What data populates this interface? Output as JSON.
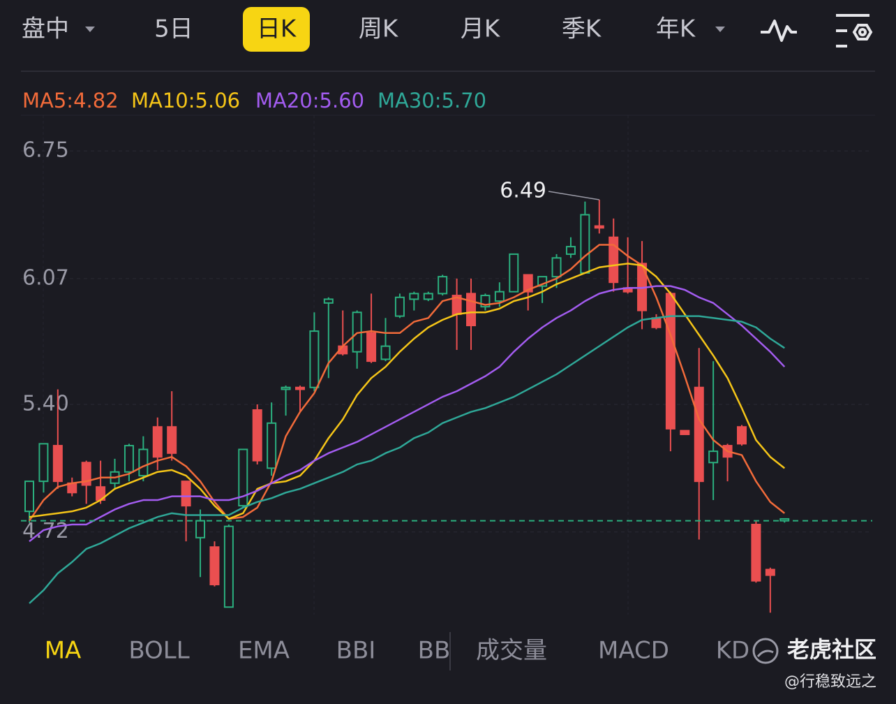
{
  "tabs": [
    "盘中",
    "5日",
    "日K",
    "周K",
    "月K",
    "季K",
    "年K"
  ],
  "selected_tab": 2,
  "indicators": [
    "MA",
    "BOLL",
    "EMA",
    "BBI",
    "BB"
  ],
  "sub_indicators": [
    "成交量",
    "MACD",
    "KD"
  ],
  "selected_indicator": 0,
  "watermark": {
    "brand": "老虎社区",
    "user": "@行稳致远之"
  },
  "chart_data": {
    "type": "candlestick",
    "ylim": [
      4.28,
      6.94
    ],
    "yticks": [
      6.75,
      6.07,
      {
        "value": 5.4,
        "label": "5.40"
      },
      4.72
    ],
    "grid": true,
    "up_color": "#2bb07f",
    "down_color": "#ea4f50",
    "price_line": 4.78,
    "price_line_color": "#2bb07f",
    "annotation": {
      "text": "6.49",
      "index": 40
    },
    "open": [
      4.83,
      4.99,
      5.18,
      4.98,
      5.09,
      4.96,
      4.98,
      5.04,
      5.02,
      5.28,
      5.28,
      4.99,
      4.69,
      4.64,
      4.32,
      4.86,
      5.37,
      5.06,
      5.48,
      5.49,
      5.49,
      5.94,
      5.71,
      5.68,
      5.78,
      5.64,
      5.87,
      5.96,
      5.96,
      5.99,
      5.98,
      5.99,
      5.92,
      5.95,
      6.0,
      6.09,
      6.03,
      6.08,
      6.2,
      6.1,
      6.35,
      6.29,
      6.02,
      6.15,
      5.86,
      5.99,
      5.26,
      5.49,
      5.09,
      5.18,
      5.28,
      4.76,
      4.52,
      4.78
    ],
    "high": [
      4.99,
      5.19,
      5.48,
      5.01,
      5.1,
      5.1,
      5.11,
      5.19,
      5.23,
      5.33,
      5.47,
      4.99,
      4.84,
      4.67,
      4.76,
      5.16,
      5.4,
      5.41,
      5.5,
      5.5,
      5.89,
      5.97,
      5.9,
      5.9,
      5.99,
      5.86,
      5.99,
      6.0,
      6.0,
      6.09,
      6.07,
      6.07,
      5.99,
      6.05,
      6.2,
      6.09,
      6.08,
      6.2,
      6.29,
      6.48,
      6.49,
      6.39,
      6.29,
      6.27,
      5.88,
      6.0,
      5.26,
      5.7,
      5.63,
      5.19,
      5.29,
      4.78,
      4.53,
      4.79
    ],
    "low": [
      4.77,
      4.93,
      4.95,
      4.91,
      4.87,
      4.87,
      4.95,
      4.99,
      4.99,
      5.05,
      5.1,
      4.67,
      4.48,
      4.43,
      4.32,
      4.85,
      5.08,
      5.02,
      5.34,
      5.36,
      5.47,
      5.54,
      5.66,
      5.59,
      5.62,
      5.63,
      5.86,
      5.9,
      5.95,
      5.98,
      5.69,
      5.69,
      5.9,
      5.92,
      6.0,
      5.9,
      5.94,
      6.02,
      6.18,
      6.1,
      6.31,
      6.0,
      5.99,
      5.8,
      5.8,
      5.15,
      5.24,
      4.68,
      4.89,
      4.99,
      5.18,
      4.45,
      4.29,
      4.77
    ],
    "close": [
      4.99,
      5.19,
      4.99,
      4.93,
      4.97,
      4.89,
      5.04,
      5.18,
      5.16,
      5.12,
      5.14,
      4.86,
      4.78,
      4.44,
      4.75,
      5.16,
      5.1,
      5.3,
      5.49,
      5.48,
      5.79,
      5.96,
      5.67,
      5.89,
      5.63,
      5.71,
      5.97,
      5.99,
      5.99,
      6.08,
      5.88,
      5.82,
      5.98,
      6.0,
      6.2,
      6.0,
      6.08,
      6.18,
      6.24,
      6.41,
      6.34,
      6.05,
      6.0,
      5.9,
      5.81,
      5.27,
      5.24,
      4.99,
      5.15,
      5.12,
      5.19,
      4.46,
      4.49,
      4.79
    ],
    "series": [
      {
        "name": "MA5:4.82",
        "color": "#f26b3a",
        "values": [
          4.78,
          4.89,
          4.96,
          4.98,
          4.99,
          5.01,
          5.01,
          5.03,
          5.07,
          5.1,
          5.12,
          5.07,
          4.99,
          4.88,
          4.79,
          4.8,
          4.85,
          4.99,
          5.23,
          5.36,
          5.46,
          5.62,
          5.71,
          5.78,
          5.79,
          5.78,
          5.78,
          5.84,
          5.86,
          5.95,
          5.97,
          5.95,
          5.93,
          5.94,
          5.97,
          6.01,
          6.04,
          6.07,
          6.12,
          6.19,
          6.25,
          6.25,
          6.19,
          6.14,
          5.97,
          5.77,
          5.55,
          5.32,
          5.21,
          5.15,
          5.13,
          4.99,
          4.88,
          4.82
        ]
      },
      {
        "name": "MA10:5.06",
        "color": "#f5c518",
        "values": [
          4.8,
          4.81,
          4.82,
          4.83,
          4.85,
          4.89,
          4.95,
          4.98,
          5.01,
          5.04,
          5.05,
          5.02,
          4.95,
          4.86,
          4.79,
          4.82,
          4.95,
          4.98,
          4.99,
          5.02,
          5.1,
          5.22,
          5.32,
          5.45,
          5.54,
          5.6,
          5.68,
          5.75,
          5.81,
          5.85,
          5.88,
          5.89,
          5.89,
          5.91,
          5.95,
          5.97,
          6.0,
          6.04,
          6.07,
          6.1,
          6.13,
          6.14,
          6.15,
          6.14,
          6.08,
          5.99,
          5.88,
          5.77,
          5.66,
          5.54,
          5.38,
          5.21,
          5.12,
          5.06
        ]
      },
      {
        "name": "MA20:5.60",
        "color": "#a35cf0",
        "values": [
          4.67,
          4.73,
          4.75,
          4.76,
          4.76,
          4.8,
          4.84,
          4.87,
          4.89,
          4.89,
          4.91,
          4.91,
          4.91,
          4.89,
          4.89,
          4.91,
          4.94,
          4.98,
          5.02,
          5.05,
          5.1,
          5.14,
          5.17,
          5.2,
          5.24,
          5.28,
          5.32,
          5.36,
          5.4,
          5.44,
          5.47,
          5.51,
          5.55,
          5.6,
          5.68,
          5.75,
          5.81,
          5.86,
          5.9,
          5.95,
          5.99,
          6.01,
          6.02,
          6.02,
          6.03,
          6.03,
          6.01,
          5.97,
          5.94,
          5.88,
          5.82,
          5.75,
          5.68,
          5.6
        ]
      },
      {
        "name": "MA30:5.70",
        "color": "#2fa898",
        "values": [
          4.34,
          4.41,
          4.5,
          4.56,
          4.63,
          4.66,
          4.7,
          4.74,
          4.77,
          4.8,
          4.82,
          4.81,
          4.81,
          4.81,
          4.81,
          4.85,
          4.88,
          4.9,
          4.93,
          4.95,
          4.98,
          5.01,
          5.04,
          5.08,
          5.1,
          5.14,
          5.17,
          5.22,
          5.25,
          5.3,
          5.33,
          5.36,
          5.38,
          5.41,
          5.44,
          5.48,
          5.52,
          5.56,
          5.61,
          5.66,
          5.71,
          5.76,
          5.81,
          5.85,
          5.86,
          5.87,
          5.87,
          5.87,
          5.86,
          5.85,
          5.84,
          5.81,
          5.75,
          5.7
        ]
      }
    ]
  }
}
